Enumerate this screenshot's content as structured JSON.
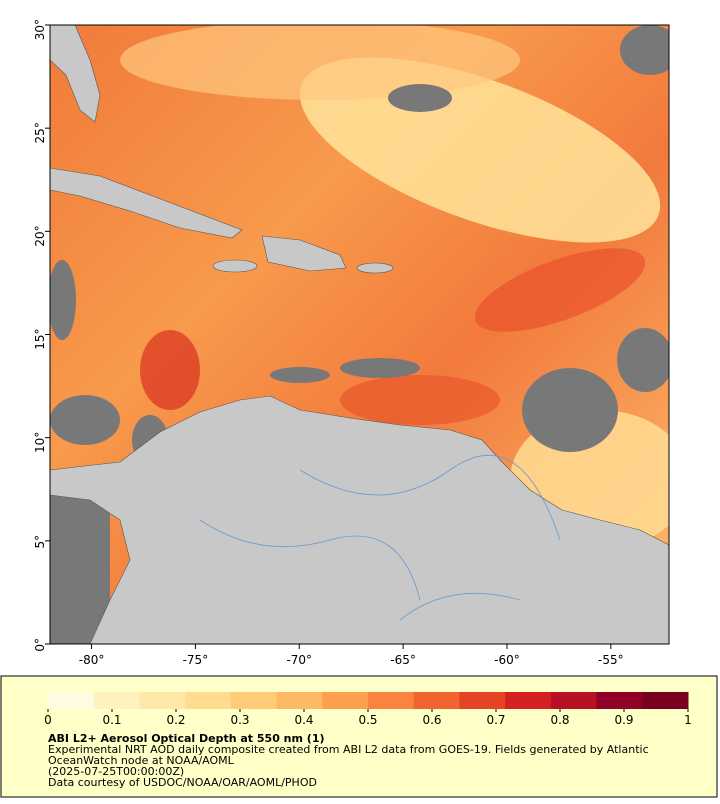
{
  "map": {
    "xlim": [
      -82,
      -52.2
    ],
    "ylim": [
      0,
      30
    ],
    "xticks": [
      {
        "value": -80,
        "label": "-80°"
      },
      {
        "value": -75,
        "label": "-75°"
      },
      {
        "value": -70,
        "label": "-70°"
      },
      {
        "value": -65,
        "label": "-65°"
      },
      {
        "value": -60,
        "label": "-60°"
      },
      {
        "value": -55,
        "label": "-55°"
      }
    ],
    "yticks": [
      {
        "value": 0,
        "label": "0°"
      },
      {
        "value": 5,
        "label": "5°"
      },
      {
        "value": 10,
        "label": "10°"
      },
      {
        "value": 15,
        "label": "15°"
      },
      {
        "value": 20,
        "label": "20°"
      },
      {
        "value": 25,
        "label": "25°"
      },
      {
        "value": 30,
        "label": "30°"
      }
    ]
  },
  "colorbar": {
    "lim": [
      0,
      1
    ],
    "ticks": [
      0,
      0.1,
      0.2,
      0.3,
      0.4,
      0.5,
      0.6,
      0.7,
      0.8,
      0.9,
      1
    ],
    "colors": [
      "#fffbe0",
      "#fff2c0",
      "#ffe8a8",
      "#ffdc90",
      "#ffcc78",
      "#ffb864",
      "#fca050",
      "#f88440",
      "#f06430",
      "#e44424",
      "#d42020",
      "#b81024",
      "#900028",
      "#780020"
    ]
  },
  "caption": {
    "title": "ABI L2+ Aerosol Optical Depth at 550 nm (1)",
    "lines": [
      "Experimental NRT AOD daily composite created from ABI L2 data from GOES-19. Fields generated by Atlantic",
      "OceanWatch node at NOAA/AOML",
      "(2025-07-25T00:00:00Z)",
      "Data courtesy of USDOC/NOAA/OAR/AOML/PHOD"
    ]
  }
}
